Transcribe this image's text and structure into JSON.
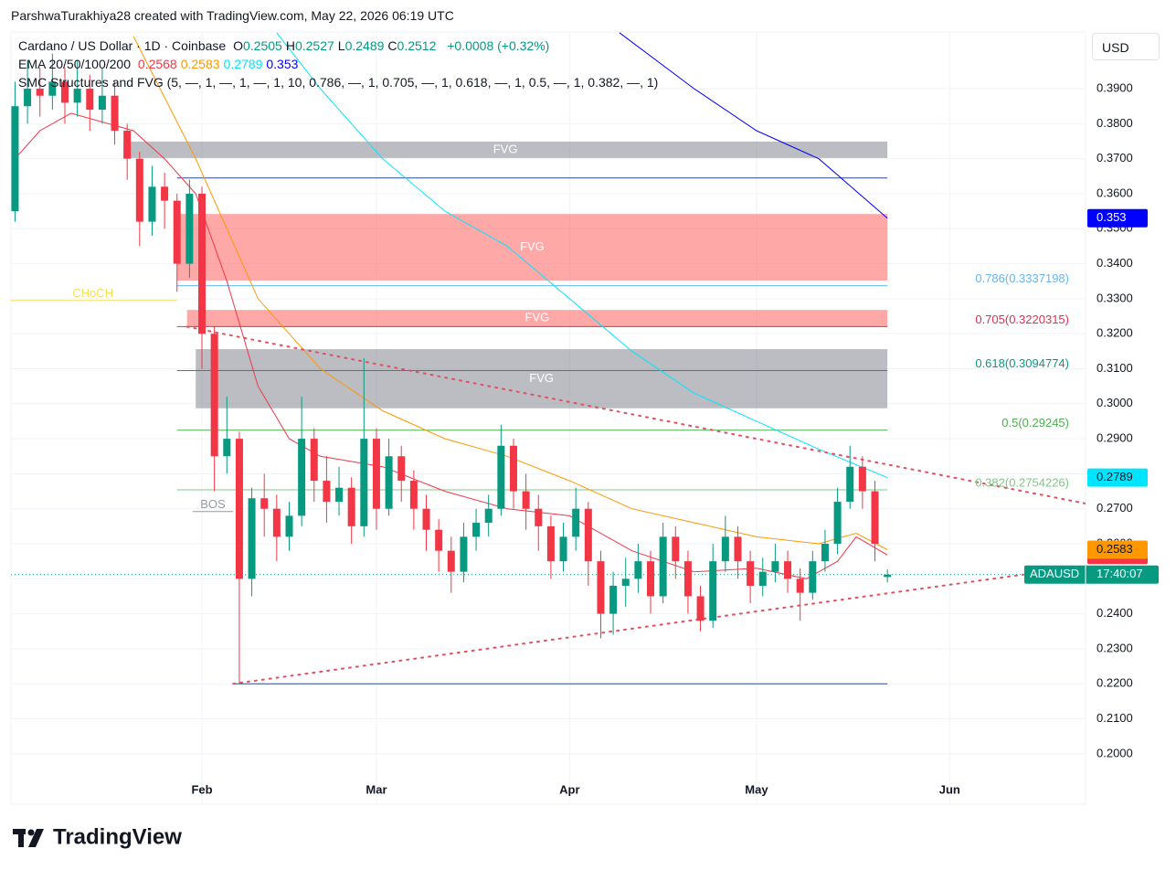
{
  "header": {
    "credit": "ParshwaTurakhiya28 created with TradingView.com, May 22, 2026 06:19 UTC"
  },
  "footer": {
    "brand": "TradingView"
  },
  "chart_data": {
    "type": "candlestick",
    "title": "Cardano / US Dollar · 1D · Coinbase",
    "ohlc_keys": [
      "O",
      "H",
      "L",
      "C"
    ],
    "change": "+0.0008 (+0.32%)",
    "indicator_label": "EMA 20/50/100/200",
    "smc_label": "SMC Structures and FVG (5, —, 1, —, 1, —, 1, 10, 0.786, —, 1, 0.705, —, 1, 0.618, —, 1, 0.5, —, 1, 0.382, —, 1)",
    "currency": "USD",
    "up_color": "#089981",
    "down_color": "#f23645",
    "x": [
      1,
      3,
      5,
      7,
      9,
      11,
      13,
      15,
      17,
      19,
      21,
      23,
      25,
      27,
      29,
      31,
      33,
      35,
      37,
      39,
      41,
      43,
      45,
      47,
      49,
      51,
      53,
      55,
      57,
      59,
      61,
      63,
      65,
      67,
      69,
      71,
      73,
      75,
      77,
      79,
      81,
      83,
      85,
      87,
      89,
      91,
      93,
      95,
      97,
      99,
      101,
      103,
      105,
      107,
      109,
      111,
      113,
      115,
      117,
      119,
      121,
      123,
      125,
      127,
      129,
      131,
      133,
      135,
      137,
      139,
      141
    ],
    "open": [
      0.355,
      0.385,
      0.39,
      0.388,
      0.392,
      0.386,
      0.39,
      0.384,
      0.388,
      0.378,
      0.37,
      0.352,
      0.362,
      0.358,
      0.34,
      0.36,
      0.32,
      0.285,
      0.29,
      0.25,
      0.273,
      0.27,
      0.262,
      0.268,
      0.29,
      0.278,
      0.272,
      0.276,
      0.265,
      0.29,
      0.27,
      0.285,
      0.278,
      0.27,
      0.264,
      0.258,
      0.252,
      0.262,
      0.266,
      0.27,
      0.288,
      0.275,
      0.27,
      0.265,
      0.255,
      0.262,
      0.27,
      0.255,
      0.24,
      0.248,
      0.25,
      0.255,
      0.245,
      0.262,
      0.255,
      0.245,
      0.238,
      0.255,
      0.262,
      0.255,
      0.248,
      0.252,
      0.255,
      0.25,
      0.246,
      0.255,
      0.26,
      0.272,
      0.282,
      0.275,
      0.2505
    ],
    "high": [
      0.392,
      0.398,
      0.396,
      0.4,
      0.396,
      0.398,
      0.394,
      0.396,
      0.392,
      0.38,
      0.372,
      0.368,
      0.366,
      0.36,
      0.364,
      0.362,
      0.322,
      0.302,
      0.292,
      0.276,
      0.28,
      0.274,
      0.272,
      0.302,
      0.293,
      0.285,
      0.282,
      0.279,
      0.313,
      0.293,
      0.29,
      0.288,
      0.281,
      0.274,
      0.267,
      0.262,
      0.266,
      0.27,
      0.274,
      0.294,
      0.29,
      0.28,
      0.274,
      0.268,
      0.266,
      0.276,
      0.272,
      0.258,
      0.252,
      0.256,
      0.26,
      0.258,
      0.266,
      0.265,
      0.258,
      0.248,
      0.26,
      0.268,
      0.265,
      0.258,
      0.256,
      0.26,
      0.258,
      0.253,
      0.258,
      0.264,
      0.276,
      0.288,
      0.285,
      0.278,
      0.2527
    ],
    "low": [
      0.352,
      0.38,
      0.382,
      0.384,
      0.38,
      0.382,
      0.378,
      0.38,
      0.374,
      0.364,
      0.345,
      0.348,
      0.35,
      0.332,
      0.336,
      0.31,
      0.275,
      0.28,
      0.22,
      0.245,
      0.262,
      0.255,
      0.258,
      0.265,
      0.272,
      0.266,
      0.268,
      0.26,
      0.262,
      0.264,
      0.268,
      0.272,
      0.264,
      0.258,
      0.252,
      0.246,
      0.249,
      0.258,
      0.262,
      0.268,
      0.27,
      0.264,
      0.258,
      0.25,
      0.252,
      0.258,
      0.248,
      0.233,
      0.234,
      0.242,
      0.246,
      0.24,
      0.243,
      0.25,
      0.24,
      0.235,
      0.236,
      0.252,
      0.25,
      0.243,
      0.245,
      0.249,
      0.246,
      0.238,
      0.244,
      0.252,
      0.257,
      0.27,
      0.27,
      0.255,
      0.2489
    ],
    "close": [
      0.385,
      0.39,
      0.388,
      0.392,
      0.386,
      0.39,
      0.384,
      0.388,
      0.378,
      0.37,
      0.352,
      0.362,
      0.358,
      0.34,
      0.36,
      0.32,
      0.285,
      0.29,
      0.25,
      0.273,
      0.27,
      0.262,
      0.268,
      0.29,
      0.278,
      0.272,
      0.276,
      0.265,
      0.29,
      0.27,
      0.285,
      0.278,
      0.27,
      0.264,
      0.258,
      0.252,
      0.262,
      0.266,
      0.27,
      0.288,
      0.275,
      0.27,
      0.265,
      0.255,
      0.262,
      0.27,
      0.255,
      0.24,
      0.248,
      0.25,
      0.255,
      0.245,
      0.262,
      0.255,
      0.245,
      0.238,
      0.255,
      0.262,
      0.255,
      0.248,
      0.252,
      0.255,
      0.25,
      0.246,
      0.255,
      0.26,
      0.272,
      0.282,
      0.275,
      0.26,
      0.2512
    ],
    "series": [
      {
        "color": "#f23645",
        "x": [
          1,
          5,
          10,
          20,
          25,
          30,
          35,
          40,
          45,
          50,
          60,
          70,
          80,
          90,
          100,
          110,
          120,
          128,
          133,
          136,
          141
        ],
        "values": [
          0.37,
          0.378,
          0.383,
          0.378,
          0.37,
          0.36,
          0.335,
          0.305,
          0.29,
          0.285,
          0.282,
          0.275,
          0.27,
          0.268,
          0.258,
          0.252,
          0.253,
          0.25,
          0.255,
          0.262,
          0.2568
        ]
      },
      {
        "color": "#ff9800",
        "x": [
          20,
          30,
          40,
          50,
          60,
          70,
          80,
          90,
          100,
          110,
          120,
          130,
          136,
          141
        ],
        "values": [
          0.405,
          0.37,
          0.33,
          0.31,
          0.298,
          0.29,
          0.285,
          0.278,
          0.27,
          0.266,
          0.262,
          0.26,
          0.263,
          0.2583
        ]
      },
      {
        "color": "#00e5ff",
        "x": [
          43,
          50,
          60,
          70,
          80,
          90,
          100,
          110,
          120,
          130,
          141
        ],
        "values": [
          0.406,
          0.39,
          0.37,
          0.355,
          0.345,
          0.33,
          0.315,
          0.303,
          0.295,
          0.287,
          0.2789
        ]
      },
      {
        "color": "#0000ff",
        "x": [
          98,
          110,
          120,
          130,
          141
        ],
        "values": [
          0.406,
          0.39,
          0.378,
          0.37,
          0.353
        ]
      }
    ],
    "xlim": [
      0.35,
      172.8
    ],
    "xticks": [
      {
        "value": 31,
        "label": "Feb"
      },
      {
        "value": 59,
        "label": "Mar"
      },
      {
        "value": 90,
        "label": "Apr"
      },
      {
        "value": 120,
        "label": "May"
      },
      {
        "value": 151,
        "label": "Jun"
      }
    ],
    "ylim": [
      0.1856,
      0.4062
    ],
    "yticks": [
      {
        "value": 0.2,
        "label": "0.2000"
      },
      {
        "value": 0.21,
        "label": "0.2100"
      },
      {
        "value": 0.22,
        "label": "0.2200"
      },
      {
        "value": 0.23,
        "label": "0.2300"
      },
      {
        "value": 0.24,
        "label": "0.2400"
      },
      {
        "value": 0.25,
        "label": "0.2500"
      },
      {
        "value": 0.26,
        "label": "0.2600"
      },
      {
        "value": 0.27,
        "label": "0.2700"
      },
      {
        "value": 0.28,
        "label": "0.2800"
      },
      {
        "value": 0.29,
        "label": "0.2900"
      },
      {
        "value": 0.3,
        "label": "0.3000"
      },
      {
        "value": 0.31,
        "label": "0.3100"
      },
      {
        "value": 0.32,
        "label": "0.3200"
      },
      {
        "value": 0.33,
        "label": "0.3300"
      },
      {
        "value": 0.34,
        "label": "0.3400"
      },
      {
        "value": 0.35,
        "label": "0.3500"
      },
      {
        "value": 0.36,
        "label": "0.3600"
      },
      {
        "value": 0.37,
        "label": "0.3700"
      },
      {
        "value": 0.38,
        "label": "0.3800"
      },
      {
        "value": 0.39,
        "label": "0.3900"
      }
    ],
    "grid": true,
    "zones": [
      {
        "label": "FVG",
        "x": [
          18.4,
          141
        ],
        "y": [
          0.3702,
          0.3749
        ],
        "color": "#787b86"
      },
      {
        "label": "FVG",
        "x": [
          27,
          141
        ],
        "y": [
          0.3352,
          0.3542
        ],
        "color": "#ff5252"
      },
      {
        "label": "FVG",
        "x": [
          28.6,
          141
        ],
        "y": [
          0.3221,
          0.3268
        ],
        "color": "#ff5252"
      },
      {
        "label": "FVG",
        "x": [
          30,
          141
        ],
        "y": [
          0.2987,
          0.3156
        ],
        "color": "#787b86"
      }
    ],
    "levels": [
      {
        "value": 0.3645,
        "x": [
          27,
          141
        ],
        "color": "#2a4a8f"
      },
      {
        "value": 0.22,
        "x": [
          36,
          141
        ],
        "color": "#2a4a8f"
      }
    ],
    "structure": [
      {
        "label": "CHoCH",
        "value": 0.3295,
        "x": [
          0,
          27
        ],
        "color": "#f7df5a"
      },
      {
        "label": "BOS",
        "value": 0.2692,
        "x": [
          29.5,
          36
        ],
        "color": "#9598a1"
      }
    ],
    "fib": [
      {
        "label": "0.786(0.3337198)",
        "value": 0.3337198,
        "color": "#64b5f6"
      },
      {
        "label": "0.705(0.3220315)",
        "value": 0.3220315,
        "color": "#e03050"
      },
      {
        "label": "0.618(0.3094774)",
        "value": 0.3094774,
        "color": "#089981"
      },
      {
        "label": "0.5(0.29245)",
        "value": 0.29245,
        "color": "#4caf50"
      },
      {
        "label": "0.382(0.2754226)",
        "value": 0.2754226,
        "color": "#81c784"
      }
    ],
    "fib_x": [
      27,
      141
    ],
    "trendlines": [
      {
        "x": [
          28.6,
          172.8
        ],
        "y": [
          0.322,
          0.2715
        ]
      },
      {
        "x": [
          36,
          162.8
        ],
        "y": [
          0.22,
          0.2512
        ]
      }
    ],
    "trend_color": "#e05060",
    "price_badge": {
      "symbol": "ADAUSD",
      "countdown": "17:40:07"
    }
  }
}
